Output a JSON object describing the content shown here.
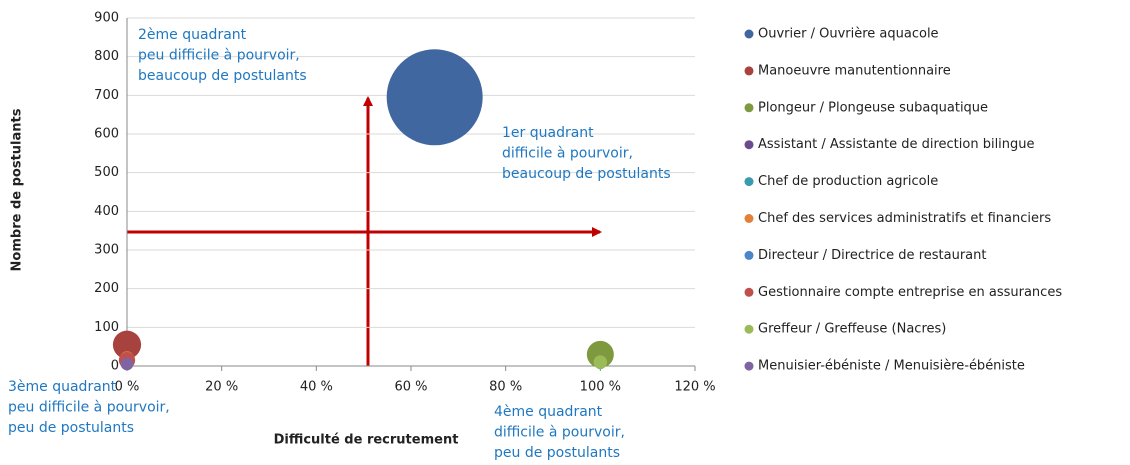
{
  "chart_data": {
    "type": "bubble",
    "xlabel": "Difficulté de recrutement",
    "ylabel": "Nombre de postulants",
    "xlim": [
      0,
      120
    ],
    "xticks": [
      {
        "value": 0,
        "label": "0 %"
      },
      {
        "value": 20,
        "label": "20 %"
      },
      {
        "value": 40,
        "label": "40 %"
      },
      {
        "value": 60,
        "label": "60 %"
      },
      {
        "value": 80,
        "label": "80 %"
      },
      {
        "value": 100,
        "label": "100 %"
      },
      {
        "value": 120,
        "label": "120 %"
      }
    ],
    "ylim": [
      0,
      900
    ],
    "yticks": [
      0,
      100,
      200,
      300,
      400,
      500,
      600,
      700,
      800,
      900
    ],
    "grid": true,
    "legend": "right",
    "annotations": [
      {
        "lines": [
          "2ème quadrant",
          "peu difficile à pourvoir,",
          "beaucoup de postulants"
        ]
      },
      {
        "lines": [
          "1er quadrant",
          "difficile à pourvoir,",
          "beaucoup de postulants"
        ]
      },
      {
        "lines": [
          "3ème quadrant",
          "peu difficile à pourvoir,",
          "peu de postulants"
        ]
      },
      {
        "lines": [
          "4ème quadrant",
          "difficile à pourvoir,",
          "peu de postulants"
        ]
      }
    ],
    "series": [
      {
        "name": "Ouvrier / Ouvrière aquacole",
        "color": "#4167a0",
        "x": [
          65
        ],
        "values": [
          695
        ],
        "sizes": [
          695
        ]
      },
      {
        "name": "Manoeuvre manutentionnaire",
        "color": "#a8423f",
        "x": [
          0
        ],
        "values": [
          55
        ],
        "sizes": [
          60
        ]
      },
      {
        "name": "Plongeur / Plongeuse subaquatique",
        "color": "#7d9a3e",
        "x": [
          100
        ],
        "values": [
          30
        ],
        "sizes": [
          55
        ]
      },
      {
        "name": "Assistant / Assistante de direction bilingue",
        "color": "#6a4c8c",
        "x": [
          0
        ],
        "values": [
          5
        ],
        "sizes": [
          10
        ]
      },
      {
        "name": "Chef de production agricole",
        "color": "#3a9bb0",
        "x": [
          100
        ],
        "values": [
          5
        ],
        "sizes": [
          8
        ]
      },
      {
        "name": "Chef des services administratifs et financiers",
        "color": "#e3813a",
        "x": [
          0
        ],
        "values": [
          20
        ],
        "sizes": [
          15
        ]
      },
      {
        "name": "Directeur / Directrice de restaurant",
        "color": "#4a86c8",
        "x": [
          0
        ],
        "values": [
          10
        ],
        "sizes": [
          10
        ]
      },
      {
        "name": "Gestionnaire compte entreprise en assurances",
        "color": "#c0504d",
        "x": [
          0
        ],
        "values": [
          15
        ],
        "sizes": [
          20
        ]
      },
      {
        "name": "Greffeur / Greffeuse (Nacres)",
        "color": "#9bbb59",
        "x": [
          100
        ],
        "values": [
          10
        ],
        "sizes": [
          14
        ]
      },
      {
        "name": "Menuisier-ébéniste / Menuisière-ébéniste",
        "color": "#8064a2",
        "x": [
          0
        ],
        "values": [
          5
        ],
        "sizes": [
          12
        ]
      }
    ]
  }
}
